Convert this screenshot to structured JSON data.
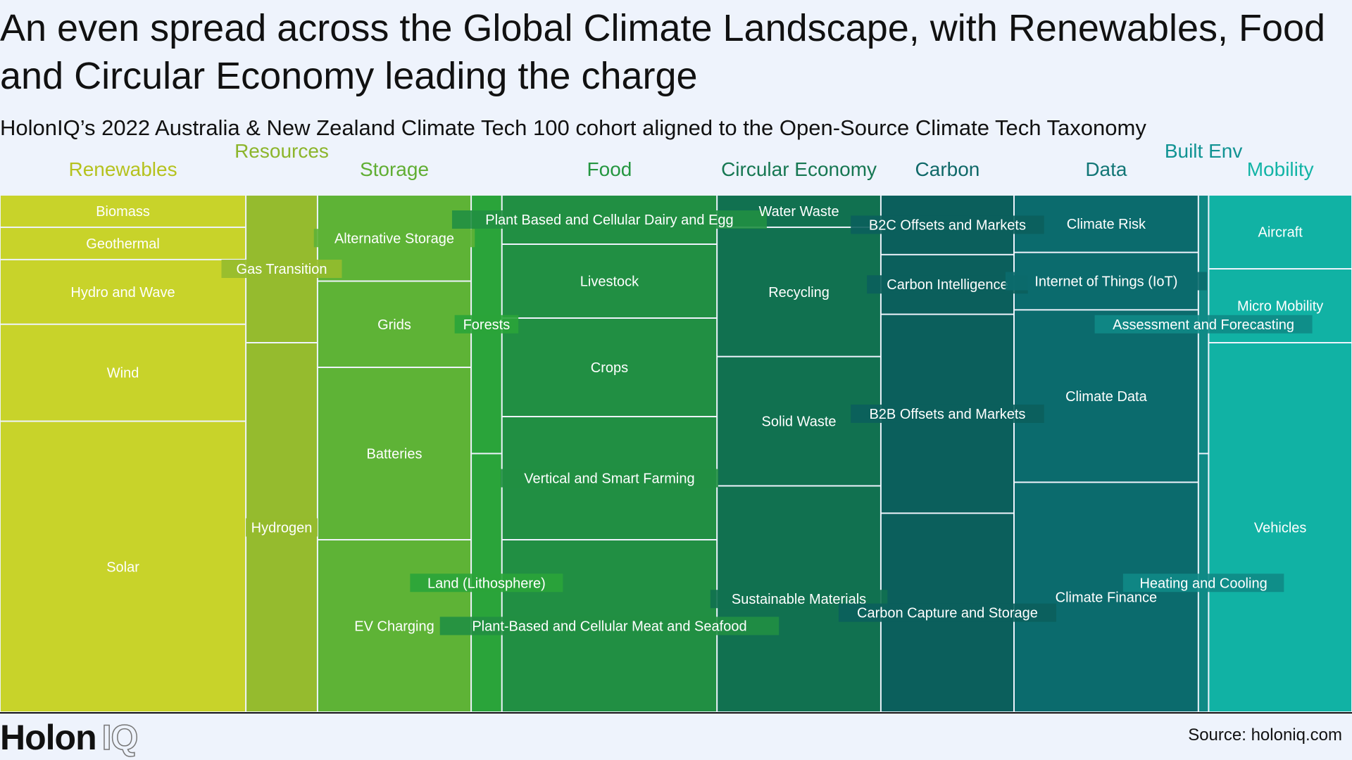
{
  "title": "An even spread across the Global Climate Landscape, with Renewables, Food and Circular Economy leading the charge",
  "subtitle": "HolonIQ’s 2022 Australia & New Zealand Climate Tech 100 cohort aligned to the Open-Source Climate Tech Taxonomy",
  "logo": {
    "holon": "Holon",
    "iq": "IQ"
  },
  "source": "Source: holoniq.com",
  "chart_data": {
    "type": "treemap",
    "value_unit": "share of cohort (%)",
    "groups": [
      {
        "name": "Renewables",
        "color": "#c8d32a",
        "header_color": "#b5c21e",
        "children": [
          {
            "name": "Biomass",
            "value": 1.5
          },
          {
            "name": "Geothermal",
            "value": 1.5
          },
          {
            "name": "Hydro and Wave",
            "value": 3
          },
          {
            "name": "Wind",
            "value": 4.5
          },
          {
            "name": "Solar",
            "value": 13.5
          }
        ]
      },
      {
        "name": "Resources",
        "color": "#95bb2e",
        "header_color": "#8cb52b",
        "children": [
          {
            "name": "Gas Transition",
            "value": 2
          },
          {
            "name": "Hydrogen",
            "value": 5
          }
        ]
      },
      {
        "name": "Storage",
        "color": "#5eb336",
        "header_color": "#60ae33",
        "children": [
          {
            "name": "Alternative Storage",
            "value": 2.5
          },
          {
            "name": "Grids",
            "value": 2.5
          },
          {
            "name": "Batteries",
            "value": 5
          },
          {
            "name": "EV Charging",
            "value": 5
          }
        ]
      },
      {
        "name": "Forests",
        "show_header": false,
        "color": "#2aa43a",
        "header_color": "#2aa43a",
        "children": [
          {
            "name": "Forests",
            "value": 1.5
          },
          {
            "name": "Land (Lithosphere)",
            "value": 1.5
          }
        ]
      },
      {
        "name": "Food",
        "color": "#218f43",
        "header_color": "#249640",
        "children": [
          {
            "name": "Plant Based and Cellular Dairy and Egg",
            "value": 2
          },
          {
            "name": "Livestock",
            "value": 3
          },
          {
            "name": "Crops",
            "value": 4
          },
          {
            "name": "Vertical and Smart Farming",
            "value": 5
          },
          {
            "name": "Plant-Based and Cellular Meat and Seafood",
            "value": 7
          }
        ]
      },
      {
        "name": "Circular Economy",
        "color": "#117150",
        "header_color": "#167752",
        "children": [
          {
            "name": "Water Waste",
            "value": 1
          },
          {
            "name": "Recycling",
            "value": 4
          },
          {
            "name": "Solid Waste",
            "value": 4
          },
          {
            "name": "Sustainable Materials",
            "value": 7
          }
        ]
      },
      {
        "name": "Carbon",
        "color": "#0b5f5c",
        "header_color": "#0f6868",
        "children": [
          {
            "name": "B2C Offsets and Markets",
            "value": 1.5
          },
          {
            "name": "Carbon Intelligence",
            "value": 1.5
          },
          {
            "name": "B2B Offsets and Markets",
            "value": 5
          },
          {
            "name": "Carbon Capture and Storage",
            "value": 5
          }
        ]
      },
      {
        "name": "Data",
        "color": "#0b6b6d",
        "header_color": "#127676",
        "children": [
          {
            "name": "Climate Risk",
            "value": 2
          },
          {
            "name": "Internet of Things (IoT)",
            "value": 2
          },
          {
            "name": "Climate Data",
            "value": 6
          },
          {
            "name": "Climate Finance",
            "value": 8
          }
        ]
      },
      {
        "name": "Built Env",
        "color": "#0f8a86",
        "header_color": "#119393",
        "children": [
          {
            "name": "Assessment and Forecasting",
            "value": 0.5
          },
          {
            "name": "Heating and Cooling",
            "value": 0.5
          }
        ]
      },
      {
        "name": "Mobility",
        "color": "#11b2a4",
        "header_color": "#12b4a6",
        "children": [
          {
            "name": "Aircraft",
            "value": 2
          },
          {
            "name": "Micro Mobility",
            "value": 2
          },
          {
            "name": "Vehicles",
            "value": 10
          }
        ]
      }
    ]
  }
}
